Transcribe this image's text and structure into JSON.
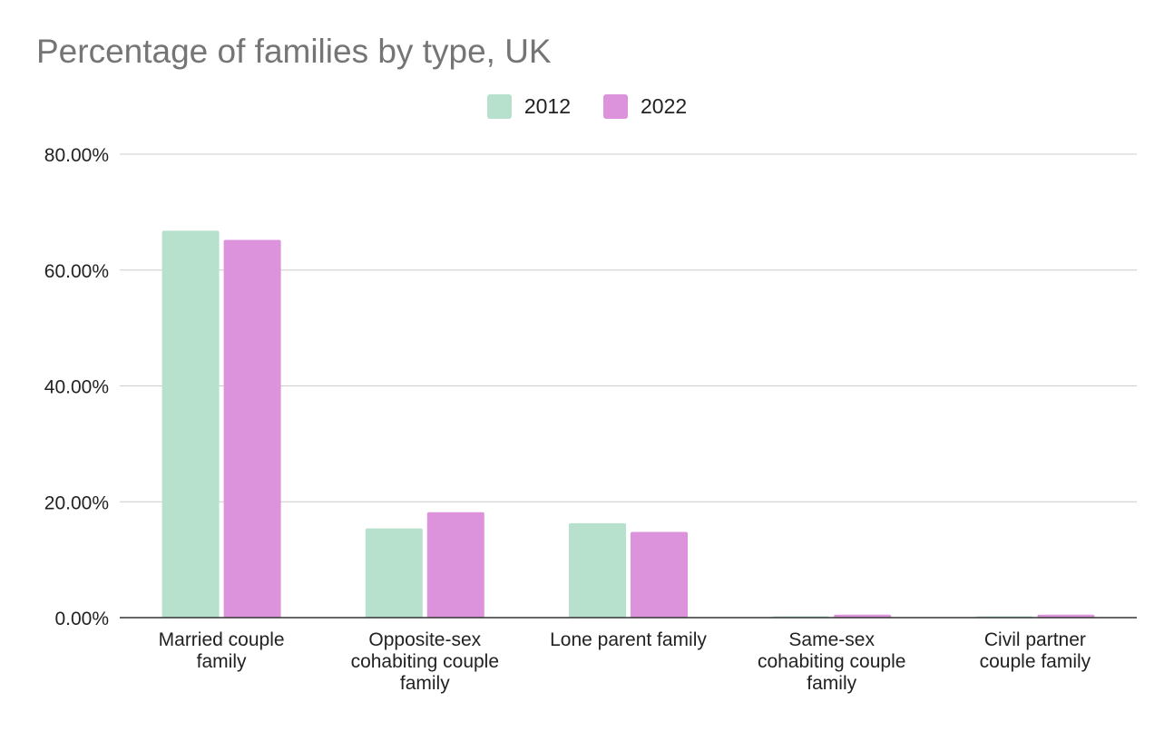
{
  "chart_data": {
    "type": "bar",
    "title": "Percentage of families by type, UK",
    "categories": [
      [
        "Married couple",
        "family"
      ],
      [
        "Opposite-sex",
        "cohabiting couple",
        "family"
      ],
      [
        "Lone parent family"
      ],
      [
        "Same-sex",
        "cohabiting couple",
        "family"
      ],
      [
        "Civil partner",
        "couple family"
      ]
    ],
    "series": [
      {
        "name": "2012",
        "color": "#b7e1cd",
        "values": [
          66.8,
          15.4,
          16.3,
          0.2,
          0.2
        ]
      },
      {
        "name": "2022",
        "color": "#dd92dc",
        "values": [
          65.2,
          18.2,
          14.8,
          0.5,
          0.5
        ]
      }
    ],
    "yticks": [
      "0.00%",
      "20.00%",
      "40.00%",
      "60.00%",
      "80.00%"
    ],
    "ylim": [
      0,
      80
    ],
    "legend_position": "top",
    "grid": true
  }
}
